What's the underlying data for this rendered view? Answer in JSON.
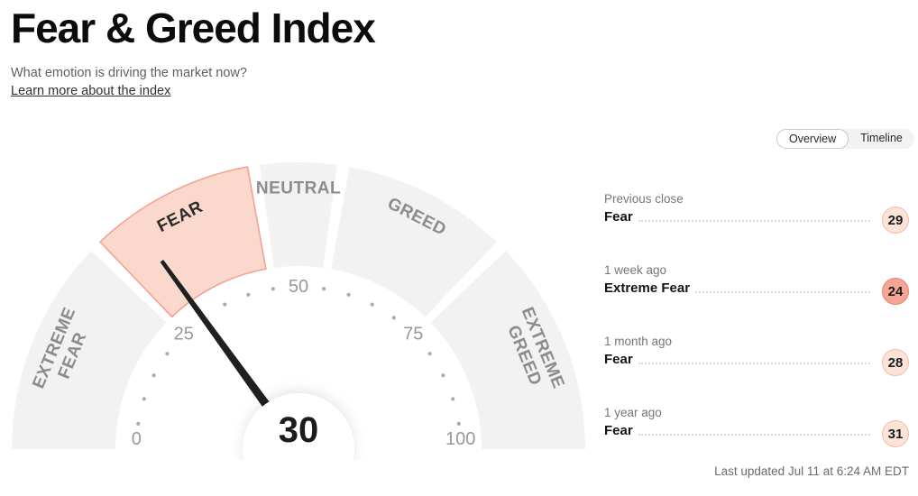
{
  "page": {
    "title": "Fear & Greed Index",
    "subtitle": "What emotion is driving the market now?",
    "learn_more": "Learn more about the index",
    "last_updated": "Last updated Jul 11 at 6:24 AM EDT"
  },
  "view_toggle": {
    "options": [
      "Overview",
      "Timeline"
    ],
    "selected": "Overview"
  },
  "chart_data": {
    "type": "gauge",
    "title": "Fear & Greed Index",
    "value": 30,
    "value_label": "30",
    "min": 0,
    "max": 100,
    "axis_ticks": [
      0,
      25,
      50,
      75,
      100
    ],
    "minor_tick_step": 5,
    "segments": [
      {
        "label": "EXTREME FEAR",
        "from": 0,
        "to": 25,
        "active": false
      },
      {
        "label": "FEAR",
        "from": 25,
        "to": 45,
        "active": true
      },
      {
        "label": "NEUTRAL",
        "from": 45,
        "to": 55,
        "active": false
      },
      {
        "label": "GREED",
        "from": 55,
        "to": 75,
        "active": false
      },
      {
        "label": "EXTREME GREED",
        "from": 75,
        "to": 100,
        "active": false
      }
    ],
    "colors": {
      "active_fill": "#fad9cc",
      "active_stroke": "#f3a294",
      "inactive_fill": "#f2f2f2",
      "needle": "#202020",
      "segment_label": "#8c8c8c",
      "active_segment_label": "#2b2b2b",
      "axis_number": "#999999",
      "minor_dot": "#ababab",
      "value_text": "#1c1c1c"
    }
  },
  "history": [
    {
      "period": "Previous close",
      "rating": "Fear",
      "value": 29,
      "tone": "light"
    },
    {
      "period": "1 week ago",
      "rating": "Extreme Fear",
      "value": 24,
      "tone": "dark"
    },
    {
      "period": "1 month ago",
      "rating": "Fear",
      "value": 28,
      "tone": "light"
    },
    {
      "period": "1 year ago",
      "rating": "Fear",
      "value": 31,
      "tone": "light"
    }
  ],
  "badge_colors": {
    "light": {
      "bg": "#fce3d8",
      "border": "#f5bba9"
    },
    "dark": {
      "bg": "#f4a695",
      "border": "#ec7e6e"
    }
  }
}
